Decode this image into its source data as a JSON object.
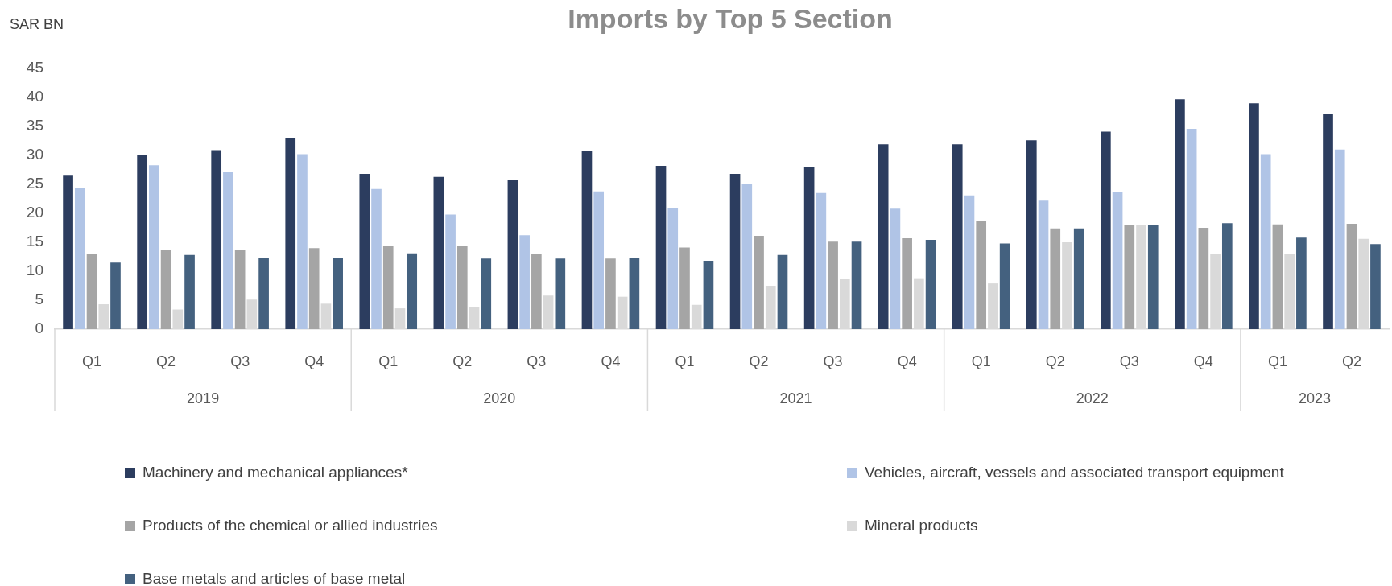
{
  "chart_data": {
    "type": "bar",
    "title": "Imports by Top 5 Section",
    "ylabel": "SAR BN",
    "categories": [
      "Q1",
      "Q2",
      "Q3",
      "Q4",
      "Q1",
      "Q2",
      "Q3",
      "Q4",
      "Q1",
      "Q2",
      "Q3",
      "Q4",
      "Q1",
      "Q2",
      "Q3",
      "Q4",
      "Q1",
      "Q2"
    ],
    "annotations": [
      "2019",
      "2020",
      "2021",
      "2022",
      "2023"
    ],
    "series": [
      {
        "name": "Machinery and mechanical appliances*",
        "color": "#2c3d5f",
        "values": [
          26.5,
          30,
          30.9,
          33,
          26.8,
          26.3,
          25.8,
          30.7,
          28.2,
          26.8,
          28,
          31.9,
          31.9,
          32.6,
          34.1,
          39.7,
          39,
          37.1
        ]
      },
      {
        "name": "Vehicles, aircraft, vessels and associated transport equipment",
        "color": "#b0c4e6",
        "values": [
          24.3,
          28.3,
          27.1,
          30.2,
          24.2,
          19.8,
          16.2,
          23.8,
          20.9,
          25,
          23.5,
          20.8,
          23.1,
          22.2,
          23.7,
          34.6,
          30.2,
          31
        ]
      },
      {
        "name": "Products of the chemical or allied industries",
        "color": "#a5a5a5",
        "values": [
          12.9,
          13.6,
          13.7,
          14,
          14.3,
          14.4,
          12.9,
          12.2,
          14.1,
          16.1,
          15.1,
          15.7,
          18.7,
          17.4,
          18,
          17.5,
          18.1,
          18.2
        ]
      },
      {
        "name": "Mineral products",
        "color": "#d9d9d9",
        "values": [
          4.3,
          3.4,
          5.1,
          4.4,
          3.6,
          3.8,
          5.8,
          5.6,
          4.2,
          7.5,
          8.7,
          8.8,
          7.9,
          15,
          17.9,
          13,
          13,
          15.6
        ]
      },
      {
        "name": "Base metals and articles of base metal",
        "color": "#44617f",
        "values": [
          11.5,
          12.8,
          12.3,
          12.3,
          13.1,
          12.2,
          12.2,
          12.3,
          11.8,
          12.8,
          15.1,
          15.4,
          14.8,
          17.4,
          17.9,
          18.3,
          15.8,
          14.7
        ]
      }
    ],
    "ylim": [
      0,
      45
    ],
    "yticks": [
      0,
      5,
      10,
      15,
      20,
      25,
      30,
      35,
      40,
      45
    ],
    "grid": false,
    "legend": "bottom"
  }
}
